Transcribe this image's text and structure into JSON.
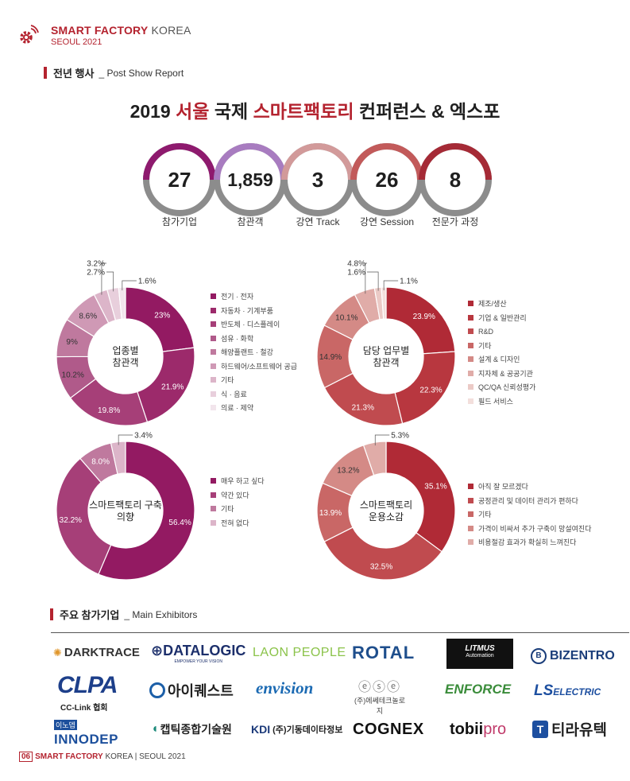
{
  "header": {
    "brand_bold": "SMART FACTORY",
    "brand_light": "KOREA",
    "brand_sub": "SEOUL 2021",
    "icon": "gear-wifi-icon"
  },
  "section1": {
    "title": "전년 행사",
    "title_en": "_ Post Show Report"
  },
  "main_title": {
    "part1": "2019",
    "part2": "서울",
    "part3": "국제",
    "part4": "스마트팩토리",
    "part5": "컨퍼런스 & 엑스포"
  },
  "stats": [
    {
      "value": "27",
      "label": "참가기업",
      "color": "#8e1a6e"
    },
    {
      "value": "1,859",
      "label": "참관객",
      "color": "#a87cc0"
    },
    {
      "value": "3",
      "label": "강연 Track",
      "color": "#d29a9a"
    },
    {
      "value": "26",
      "label": "강연 Session",
      "color": "#c25a5a"
    },
    {
      "value": "8",
      "label": "전문가 과정",
      "color": "#a52a36"
    }
  ],
  "chart_data": [
    {
      "type": "pie",
      "title": "업종별 참관객",
      "categories": [
        "전기 · 전자",
        "자동차 · 기계부품",
        "반도체 · 디스플레이",
        "섬유 · 화학",
        "해양플랜트 · 철강",
        "하드웨어/소프트웨어 공급",
        "기타",
        "식 · 음료",
        "의료 · 제약"
      ],
      "values": [
        23,
        21.9,
        19.8,
        10.2,
        9,
        8.6,
        3.2,
        2.7,
        1.6
      ],
      "labels": [
        "23%",
        "21.9%",
        "19.8%",
        "10.2%",
        "9%",
        "8.6%",
        "3.2%",
        "2.7%",
        "1.6%"
      ],
      "colors": [
        "#931a62",
        "#9c2a6b",
        "#a63f78",
        "#b05a8a",
        "#bf799e",
        "#cf99b5",
        "#dcb5c9",
        "#e8cfdc",
        "#f2e5ec"
      ]
    },
    {
      "type": "pie",
      "title": "담당 업무별 참관객",
      "categories": [
        "제조/생산",
        "기업 & 일반관리",
        "R&D",
        "기타",
        "설계 & 디자인",
        "지자체 & 공공기관",
        "QC/QA 신뢰성평가",
        "필드 서비스"
      ],
      "values": [
        23.9,
        22.3,
        21.3,
        14.9,
        10.1,
        4.8,
        1.6,
        1.1
      ],
      "labels": [
        "23.9%",
        "22.3%",
        "21.3%",
        "14.9%",
        "10.1%",
        "4.8%",
        "1.6%",
        "1.1%"
      ],
      "colors": [
        "#b02a36",
        "#b8373f",
        "#c04b4f",
        "#c96766",
        "#d48a86",
        "#e0aca8",
        "#ebcac6",
        "#f3dfdc"
      ]
    },
    {
      "type": "pie",
      "title": "스마트팩토리 구축 의향",
      "categories": [
        "매우 하고 싶다",
        "약간 있다",
        "기타",
        "전혀 없다"
      ],
      "values": [
        56.4,
        32.2,
        8.0,
        3.4
      ],
      "labels": [
        "56.4%",
        "32.2%",
        "8.0%",
        "3.4%"
      ],
      "colors": [
        "#931a62",
        "#a63f78",
        "#bf799e",
        "#dcb5c9"
      ]
    },
    {
      "type": "pie",
      "title": "스마트팩토리 운용소감",
      "categories": [
        "아직 잘 모르겠다",
        "공정관리 및 데이터 관리가 편하다",
        "기타",
        "가격이 비싸서 추가 구축이 망설여진다",
        "비용절감 효과가 확실히 느껴진다"
      ],
      "values": [
        35.1,
        32.5,
        13.9,
        13.2,
        5.3
      ],
      "labels": [
        "35.1%",
        "32.5%",
        "13.9%",
        "13.2%",
        "5.3%"
      ],
      "colors": [
        "#b02a36",
        "#c04b4f",
        "#c96766",
        "#d48a86",
        "#e0aca8"
      ]
    }
  ],
  "section2": {
    "title": "주요 참가기업",
    "title_en": "_ Main Exhibitors"
  },
  "exhibitors": {
    "darktrace": "DARKTRACE",
    "datalogic": "DATALOGIC",
    "datalogic_sub": "EMPOWER YOUR VISION",
    "laonpeople": "LAON PEOPLE",
    "rotal": "ROTAL",
    "litmus": "LITMUS",
    "litmus_sub": "Automation",
    "bizentro": "BIZENTRO",
    "clpa": "CLPA",
    "clpa_caption": "CC-Link 협회",
    "aiquest": "아이퀘스트",
    "envision": "envision",
    "ese": "(주)에쎄테크놀로지",
    "enforce": "ENFORCE",
    "ls_a": "LS",
    "ls_b": "ELECTRIC",
    "innodep_top": "이노뎁",
    "innodep": "INNODEP",
    "captic": "캡틱종합기술원",
    "kdi": "KDI",
    "kdi_text": "(주)기동데이타정보",
    "cognex": "COGNEX",
    "tobii_a": "tobii",
    "tobii_b": "pro",
    "tirauteck": "티라유텍"
  },
  "footer": {
    "page": "06",
    "bold": "SMART FACTORY",
    "light": "KOREA | SEOUL 2021"
  }
}
